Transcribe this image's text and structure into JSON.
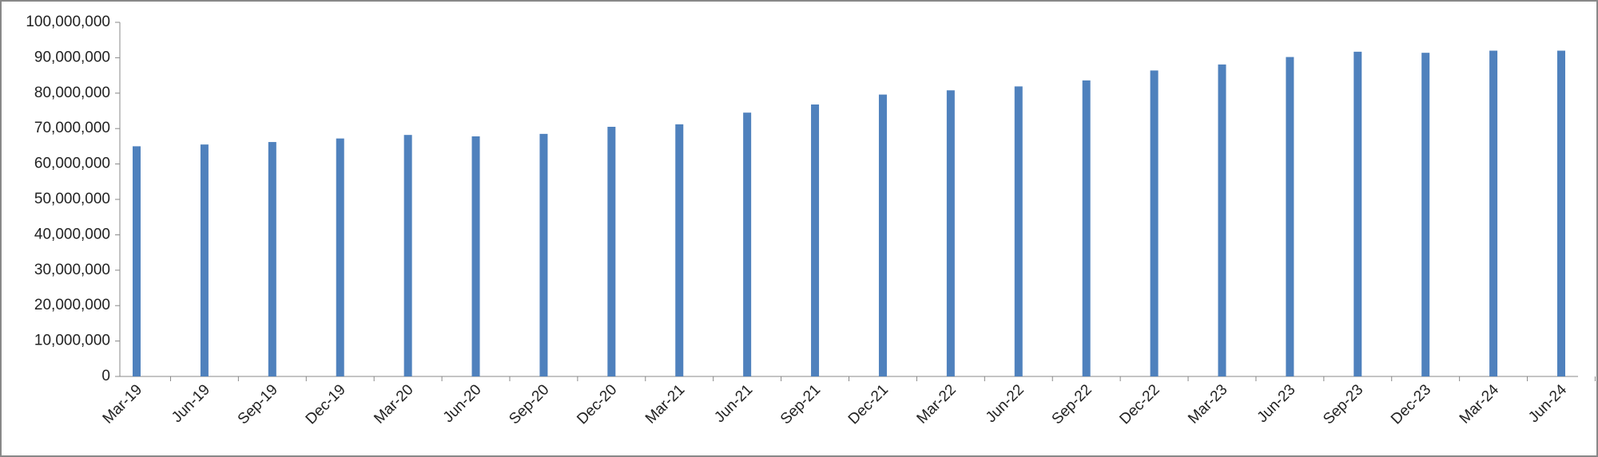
{
  "chart_data": {
    "type": "bar",
    "categories": [
      "Mar-19",
      "Jun-19",
      "Sep-19",
      "Dec-19",
      "Mar-20",
      "Jun-20",
      "Sep-20",
      "Dec-20",
      "Mar-21",
      "Jun-21",
      "Sep-21",
      "Dec-21",
      "Mar-22",
      "Jun-22",
      "Sep-22",
      "Dec-22",
      "Mar-23",
      "Jun-23",
      "Sep-23",
      "Dec-23",
      "Mar-24",
      "Jun-24"
    ],
    "values": [
      65000000,
      65500000,
      66200000,
      67200000,
      68200000,
      67800000,
      68500000,
      70500000,
      71200000,
      74500000,
      76800000,
      79600000,
      80800000,
      81900000,
      83600000,
      86400000,
      88100000,
      90200000,
      91700000,
      91400000,
      92000000,
      92000000
    ],
    "color": "#4f81bd",
    "ylim": [
      0,
      100000000
    ],
    "yticks": [
      0,
      {
        "value": 10000000,
        "label": "10,000,000"
      },
      {
        "value": 20000000,
        "label": "20,000,000"
      },
      {
        "value": 30000000,
        "label": "30,000,000"
      },
      {
        "value": 40000000,
        "label": "40,000,000"
      },
      {
        "value": 50000000,
        "label": "50,000,000"
      },
      {
        "value": 60000000,
        "label": "60,000,000"
      },
      {
        "value": 70000000,
        "label": "70,000,000"
      },
      {
        "value": 80000000,
        "label": "80,000,000"
      },
      {
        "value": 90000000,
        "label": "90,000,000"
      },
      {
        "value": 100000000,
        "label": "100,000,000"
      }
    ],
    "grid": false
  }
}
